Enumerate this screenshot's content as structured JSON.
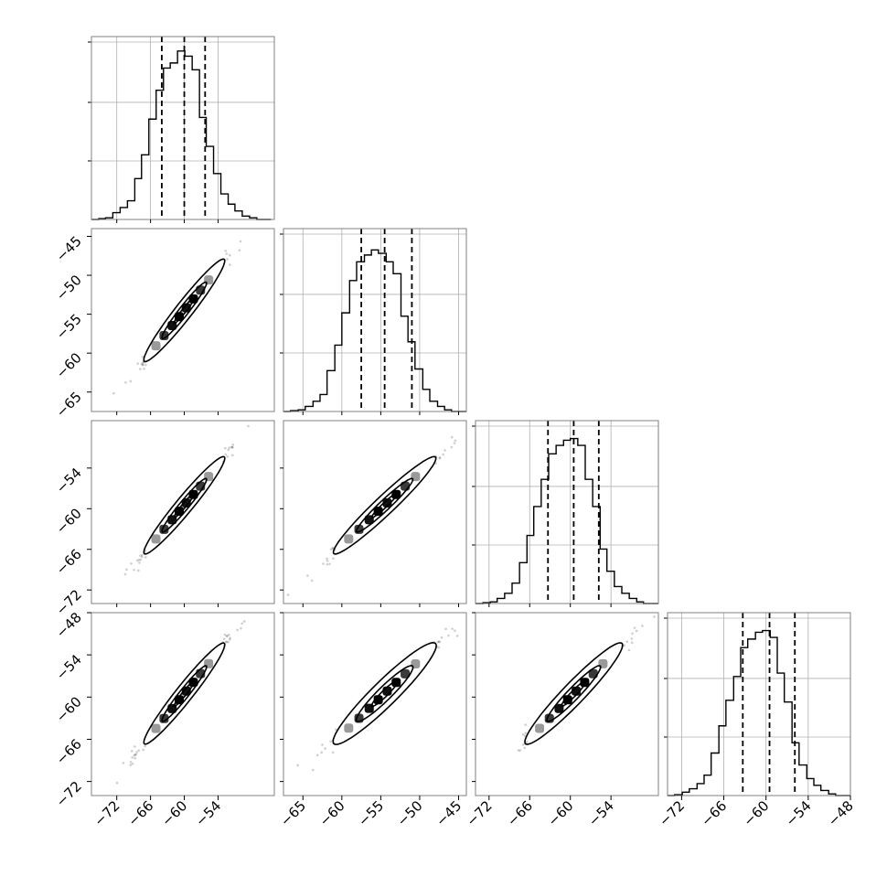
{
  "chart_data": {
    "type": "corner",
    "grid": true,
    "quantile_line_style": "dashed",
    "parameters": [
      {
        "range": [
          -76.5,
          -44.0
        ],
        "ticks": [
          -72,
          -66,
          -60,
          -54
        ],
        "tick_labels": [
          "−72",
          "−66",
          "−60",
          "−54"
        ],
        "quantiles": [
          -64.0,
          -60.0,
          -56.3
        ],
        "hist_y_max": 1.0,
        "hist_y_ticks": [
          0.33,
          0.66,
          1.0
        ]
      },
      {
        "range": [
          -67.5,
          -44.0
        ],
        "ticks": [
          -65,
          -60,
          -55,
          -50,
          -45
        ],
        "tick_labels": [
          "−65",
          "−60",
          "−55",
          "−50",
          "−45"
        ],
        "quantiles": [
          -57.5,
          -54.5,
          -51.0
        ],
        "hist_y_max": 1.0,
        "hist_y_ticks": [
          0.33,
          0.66,
          1.0
        ]
      },
      {
        "range": [
          -74.0,
          -47.0
        ],
        "ticks": [
          -72,
          -66,
          -60,
          -54
        ],
        "tick_labels": [
          "−72",
          "−66",
          "−60",
          "−54"
        ],
        "quantiles": [
          -63.3,
          -59.5,
          -55.8
        ],
        "hist_y_max": 1.0,
        "hist_y_ticks": [
          0.33,
          0.66,
          1.0
        ]
      },
      {
        "range": [
          -74.0,
          -48.0
        ],
        "ticks": [
          -72,
          -66,
          -60,
          -54,
          -48
        ],
        "tick_labels": [
          "−72",
          "−66",
          "−60",
          "−54",
          "−48"
        ],
        "quantiles": [
          -63.3,
          -59.5,
          -55.9
        ],
        "hist_y_max": 1.0,
        "hist_y_ticks": [
          0.33,
          0.66,
          1.0
        ]
      }
    ],
    "histograms": [
      {
        "bin_edges": [
          -76.5,
          -75.2,
          -74.0,
          -72.7,
          -71.4,
          -70.1,
          -68.8,
          -67.6,
          -66.3,
          -65.0,
          -63.7,
          -62.5,
          -61.2,
          -59.9,
          -58.6,
          -57.3,
          -56.1,
          -54.8,
          -53.5,
          -52.2,
          -51.0,
          -49.7,
          -48.4,
          -47.1,
          -45.8,
          -44.6
        ],
        "counts": [
          0.0,
          0.005,
          0.01,
          0.04,
          0.07,
          0.11,
          0.24,
          0.38,
          0.59,
          0.76,
          0.89,
          0.92,
          0.99,
          0.96,
          0.88,
          0.6,
          0.43,
          0.27,
          0.15,
          0.09,
          0.05,
          0.02,
          0.01,
          0.0,
          0.0
        ]
      },
      {
        "bin_edges": [
          -67.5,
          -66.6,
          -65.6,
          -64.7,
          -63.7,
          -62.8,
          -61.9,
          -60.9,
          -60.0,
          -59.0,
          -58.1,
          -57.1,
          -56.2,
          -55.3,
          -54.3,
          -53.4,
          -52.4,
          -51.5,
          -50.6,
          -49.6,
          -48.7,
          -47.7,
          -46.8,
          -45.9,
          -44.9,
          -44.0
        ],
        "counts": [
          0.0,
          0.005,
          0.01,
          0.03,
          0.06,
          0.1,
          0.24,
          0.39,
          0.58,
          0.77,
          0.88,
          0.92,
          0.95,
          0.93,
          0.88,
          0.81,
          0.56,
          0.41,
          0.25,
          0.13,
          0.06,
          0.03,
          0.01,
          0.0,
          0.0
        ]
      },
      {
        "bin_edges": [
          -74.0,
          -72.9,
          -71.8,
          -70.8,
          -69.7,
          -68.6,
          -67.5,
          -66.4,
          -65.4,
          -64.3,
          -63.2,
          -62.1,
          -61.0,
          -60.0,
          -58.9,
          -57.8,
          -56.7,
          -55.6,
          -54.6,
          -53.5,
          -52.4,
          -51.3,
          -50.2,
          -49.2,
          -48.1,
          -47.0
        ],
        "counts": [
          0.0,
          0.005,
          0.01,
          0.03,
          0.06,
          0.12,
          0.24,
          0.4,
          0.57,
          0.73,
          0.88,
          0.93,
          0.96,
          0.97,
          0.93,
          0.73,
          0.57,
          0.32,
          0.19,
          0.1,
          0.06,
          0.03,
          0.01,
          0.0,
          0.0
        ]
      },
      {
        "bin_edges": [
          -74.0,
          -73.0,
          -71.9,
          -70.9,
          -69.8,
          -68.8,
          -67.8,
          -66.7,
          -65.7,
          -64.6,
          -63.6,
          -62.6,
          -61.5,
          -60.5,
          -59.4,
          -58.4,
          -57.4,
          -56.3,
          -55.3,
          -54.2,
          -53.2,
          -52.2,
          -51.1,
          -50.1,
          -49.0,
          -48.0
        ],
        "counts": [
          0.0,
          0.005,
          0.02,
          0.04,
          0.07,
          0.12,
          0.25,
          0.41,
          0.56,
          0.7,
          0.87,
          0.92,
          0.96,
          0.97,
          0.93,
          0.72,
          0.55,
          0.31,
          0.18,
          0.1,
          0.06,
          0.03,
          0.01,
          0.0,
          0.0
        ]
      }
    ],
    "pairs": [
      {
        "row": 1,
        "col": 0,
        "center": [
          -60.0,
          -54.5
        ],
        "sigma": [
          3.6,
          3.3
        ],
        "rho": 0.985
      },
      {
        "row": 2,
        "col": 0,
        "center": [
          -60.0,
          -59.5
        ],
        "sigma": [
          3.6,
          3.6
        ],
        "rho": 0.985
      },
      {
        "row": 2,
        "col": 1,
        "center": [
          -54.5,
          -59.5
        ],
        "sigma": [
          3.3,
          3.6
        ],
        "rho": 0.985
      },
      {
        "row": 3,
        "col": 0,
        "center": [
          -60.0,
          -59.5
        ],
        "sigma": [
          3.6,
          3.6
        ],
        "rho": 0.985
      },
      {
        "row": 3,
        "col": 1,
        "center": [
          -54.5,
          -59.5
        ],
        "sigma": [
          3.3,
          3.6
        ],
        "rho": 0.975
      },
      {
        "row": 3,
        "col": 2,
        "center": [
          -59.5,
          -59.5
        ],
        "sigma": [
          3.6,
          3.6
        ],
        "rho": 0.98
      }
    ],
    "contour_sigmas": [
      0.5,
      1.1,
      2.0
    ],
    "colors": {
      "line": "#000000",
      "grid": "#b0b0b0",
      "frame": "#808080",
      "points": "#404040"
    }
  }
}
